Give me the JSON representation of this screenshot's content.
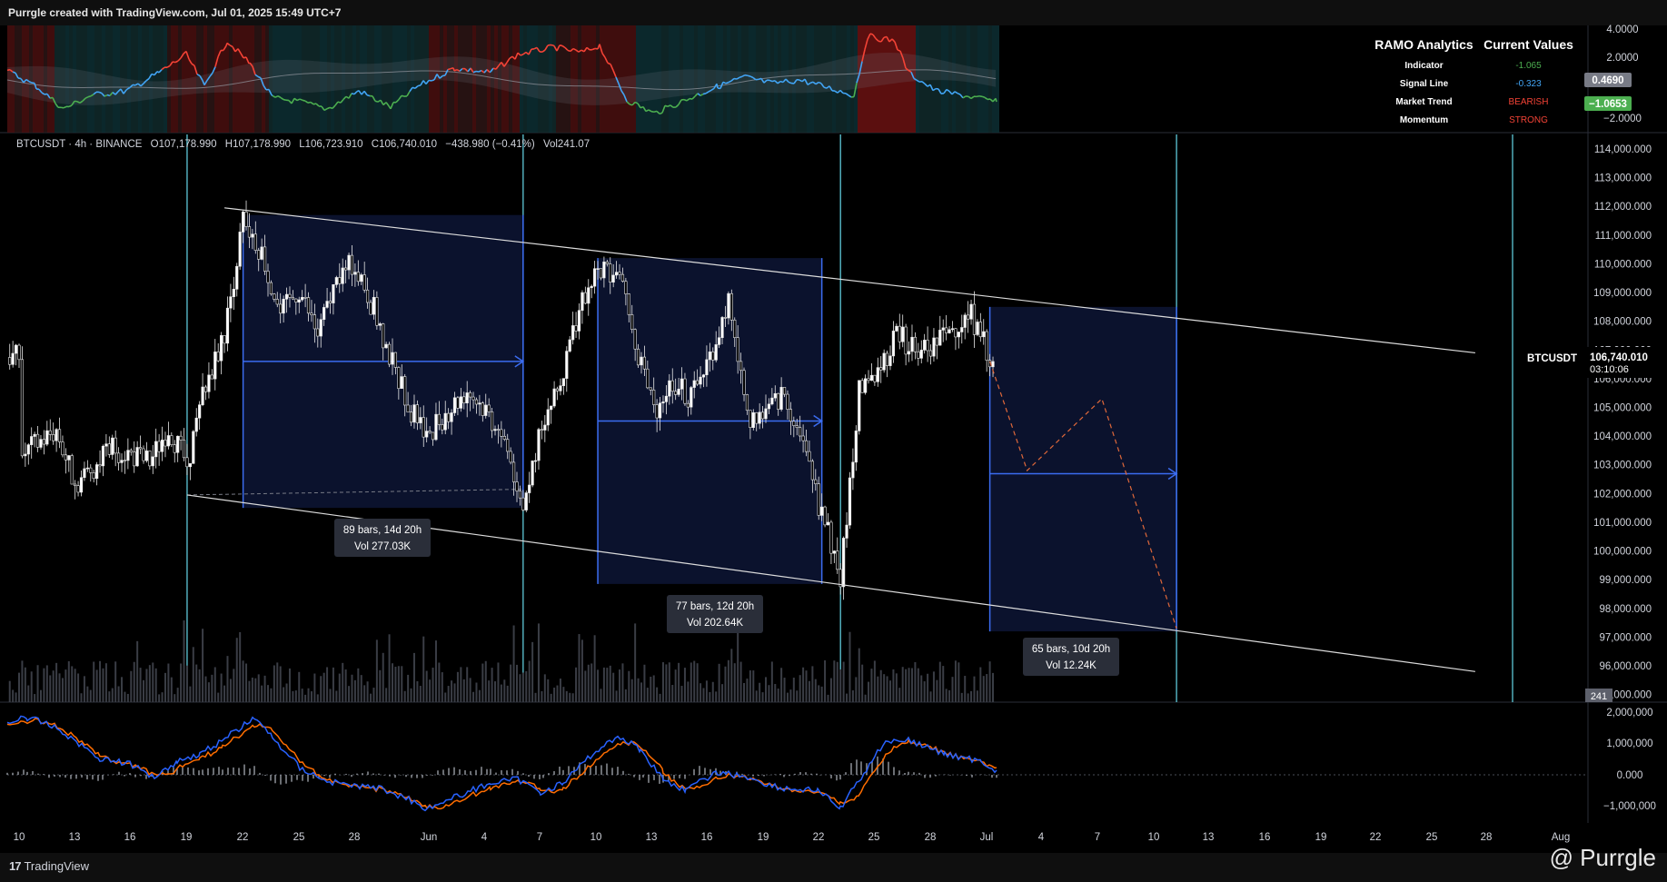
{
  "header": {
    "title": "Purrgle created with TradingView.com, Jul 01, 2025 15:49 UTC+7"
  },
  "legend": {
    "symbol": "BTCUSDT · 4h · BINANCE",
    "open": "O107,178.990",
    "high": "H107,178.990",
    "low": "L106,723.910",
    "close": "C106,740.010",
    "change": "−438.980 (−0.41%)",
    "volume": "Vol241.07"
  },
  "ramo_table": {
    "title_left": "RAMO Analytics",
    "title_right": "Current Values",
    "rows": [
      {
        "label": "Indicator",
        "value": "-1.065",
        "color": "#4caf50"
      },
      {
        "label": "Signal Line",
        "value": "-0.323",
        "color": "#42a5f5"
      },
      {
        "label": "Market Trend",
        "value": "BEARISH",
        "color": "#f44336"
      },
      {
        "label": "Momentum",
        "value": "STRONG",
        "color": "#f44336"
      }
    ]
  },
  "indicator_axis": {
    "ticks": [
      "4.0000",
      "2.0000",
      "−2.0000"
    ],
    "badges": [
      {
        "text": "0.4690",
        "color": "#787b86"
      },
      {
        "text": "−1.0653",
        "color": "#4caf50"
      }
    ]
  },
  "macd_axis": {
    "ticks": [
      "2,000,000",
      "1,000,000",
      "0.000",
      "−1,000,000"
    ]
  },
  "price_badge": {
    "symbol": "BTCUSDT",
    "price": "106,740.010",
    "countdown": "03:10:06",
    "volume": "241"
  },
  "measure_boxes": [
    {
      "line1": "89 bars, 14d 20h",
      "line2": "Vol 277.03K"
    },
    {
      "line1": "77 bars, 12d 20h",
      "line2": "Vol 202.64K"
    },
    {
      "line1": "65 bars, 10d 20h",
      "line2": "Vol 12.24K"
    }
  ],
  "footer": {
    "logo": "TradingView",
    "watermark": "@ Purrgle"
  },
  "chart_data": {
    "type": "candlestick",
    "symbol": "BTCUSDT",
    "interval": "4h",
    "exchange": "BINANCE",
    "ylim": [
      95000,
      114500
    ],
    "y_ticks": [
      114000,
      113000,
      112000,
      111000,
      110000,
      109000,
      108000,
      107000,
      106000,
      105000,
      104000,
      103000,
      102000,
      101000,
      100000,
      99000,
      98000,
      97000,
      96000,
      95000
    ],
    "x_ticks": [
      "10",
      "13",
      "16",
      "19",
      "22",
      "25",
      "28",
      "Jun",
      "4",
      "7",
      "10",
      "13",
      "16",
      "19",
      "22",
      "25",
      "28",
      "Jul",
      "4",
      "7",
      "10",
      "13",
      "16",
      "19",
      "22",
      "25",
      "28",
      "Aug"
    ],
    "price_path": [
      [
        "May 10",
        103300
      ],
      [
        "May 12",
        104200
      ],
      [
        "May 13",
        102300
      ],
      [
        "May 15",
        103600
      ],
      [
        "May 17",
        103100
      ],
      [
        "May 18",
        104300
      ],
      [
        "May 19",
        103000
      ],
      [
        "May 20",
        105800
      ],
      [
        "May 21",
        107500
      ],
      [
        "May 22",
        111600
      ],
      [
        "May 23",
        110400
      ],
      [
        "May 24",
        108200
      ],
      [
        "May 25",
        109100
      ],
      [
        "May 26",
        107500
      ],
      [
        "May 27",
        109400
      ],
      [
        "May 28",
        110100
      ],
      [
        "May 29",
        108400
      ],
      [
        "May 30",
        106500
      ],
      [
        "May 31",
        104800
      ],
      [
        "Jun 1",
        104200
      ],
      [
        "Jun 3",
        105600
      ],
      [
        "Jun 4",
        104900
      ],
      [
        "Jun 5",
        103800
      ],
      [
        "Jun 6",
        101700
      ],
      [
        "Jun 7",
        104500
      ],
      [
        "Jun 8",
        105800
      ],
      [
        "Jun 9",
        108500
      ],
      [
        "Jun 10",
        109700
      ],
      [
        "Jun 11",
        109800
      ],
      [
        "Jun 12",
        107300
      ],
      [
        "Jun 13",
        104900
      ],
      [
        "Jun 14",
        105900
      ],
      [
        "Jun 15",
        105300
      ],
      [
        "Jun 16",
        106800
      ],
      [
        "Jun 17",
        108600
      ],
      [
        "Jun 18",
        104600
      ],
      [
        "Jun 19",
        104800
      ],
      [
        "Jun 20",
        105500
      ],
      [
        "Jun 21",
        103600
      ],
      [
        "Jun 22",
        101300
      ],
      [
        "Jun 23",
        99200
      ],
      [
        "Jun 24",
        105500
      ],
      [
        "Jun 25",
        106200
      ],
      [
        "Jun 26",
        107600
      ],
      [
        "Jun 27",
        106900
      ],
      [
        "Jun 28",
        107200
      ],
      [
        "Jun 29",
        107800
      ],
      [
        "Jun 30",
        108200
      ],
      [
        "Jul 1",
        106740
      ]
    ],
    "channel": {
      "upper": [
        [
          "May 21",
          111950
        ],
        [
          "Jul 27",
          106900
        ]
      ],
      "lower": [
        [
          "May 19",
          101950
        ],
        [
          "Jul 27",
          95800
        ]
      ]
    },
    "measure_ranges": [
      {
        "from": "May 22",
        "to": "Jun 6",
        "top": 111700,
        "bottom": 101500,
        "bars": 89
      },
      {
        "from": "Jun 10",
        "to": "Jun 22",
        "top": 110200,
        "bottom": 98850,
        "bars": 77
      },
      {
        "from": "Jul 1",
        "to": "Jul 11",
        "top": 108500,
        "bottom": 97200,
        "bars": 65
      }
    ],
    "projection": [
      [
        "Jul 1",
        106600
      ],
      [
        "Jul 3",
        102800
      ],
      [
        "Jul 7",
        105300
      ],
      [
        "Jul 11",
        97300
      ]
    ],
    "vertical_lines": [
      "May 19",
      "Jun 6",
      "Jun 23",
      "Jul 11",
      "Jul 29"
    ]
  }
}
